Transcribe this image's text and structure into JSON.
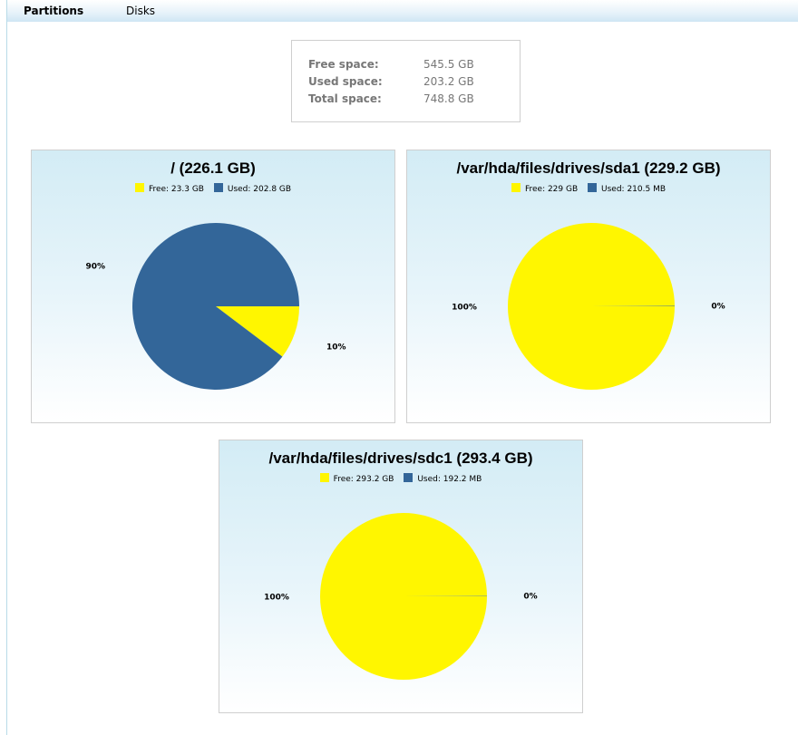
{
  "tabs": [
    {
      "label": "Partitions",
      "active": true
    },
    {
      "label": "Disks",
      "active": false
    }
  ],
  "summary": {
    "free_label": "Free space:",
    "free_value": "545.5 GB",
    "used_label": "Used space:",
    "used_value": "203.2 GB",
    "total_label": "Total space:",
    "total_value": "748.8 GB"
  },
  "colors": {
    "free": "#fff600",
    "used": "#336699"
  },
  "chart_data": [
    {
      "type": "pie",
      "title": "/ (226.1 GB)",
      "slices": [
        {
          "label": "Free: 23.3 GB",
          "value": 23.3,
          "percent_label": "10%",
          "color": "#fff600"
        },
        {
          "label": "Used: 202.8 GB",
          "value": 202.8,
          "percent_label": "90%",
          "color": "#336699"
        }
      ]
    },
    {
      "type": "pie",
      "title": "/var/hda/files/drives/sda1 (229.2 GB)",
      "slices": [
        {
          "label": "Free: 229 GB",
          "value": 229.0,
          "percent_label": "100%",
          "color": "#fff600"
        },
        {
          "label": "Used: 210.5 MB",
          "value": 0.2105,
          "percent_label": "0%",
          "color": "#336699"
        }
      ]
    },
    {
      "type": "pie",
      "title": "/var/hda/files/drives/sdc1 (293.4 GB)",
      "slices": [
        {
          "label": "Free: 293.2 GB",
          "value": 293.2,
          "percent_label": "100%",
          "color": "#fff600"
        },
        {
          "label": "Used: 192.2 MB",
          "value": 0.1922,
          "percent_label": "0%",
          "color": "#336699"
        }
      ]
    }
  ]
}
